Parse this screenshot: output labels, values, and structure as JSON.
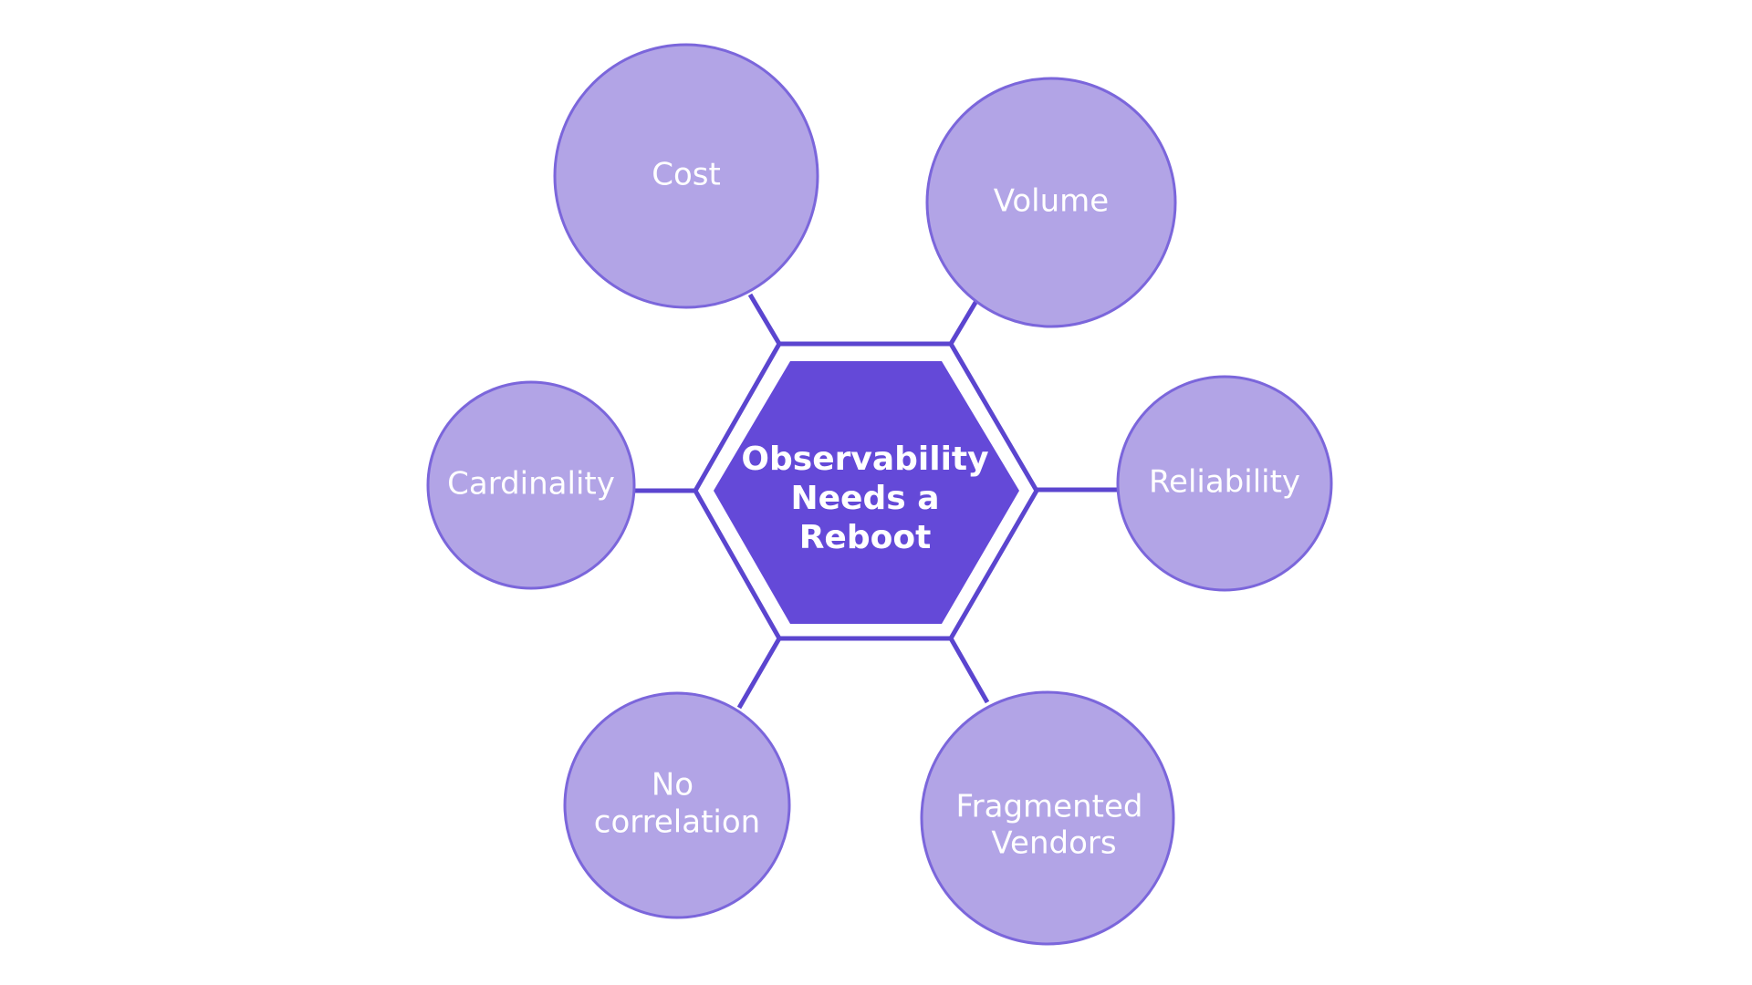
{
  "colors": {
    "accent": "#6449d8",
    "node_fill": "#b2a4e6",
    "node_stroke": "#7b66db",
    "line": "#5b45cf",
    "background": "#ffffff"
  },
  "center": {
    "lines": [
      "Observability",
      "Needs a",
      "Reboot"
    ]
  },
  "nodes": [
    {
      "id": "cost",
      "lines": [
        "Cost"
      ]
    },
    {
      "id": "volume",
      "lines": [
        "Volume"
      ]
    },
    {
      "id": "cardinality",
      "lines": [
        "Cardinality"
      ]
    },
    {
      "id": "reliability",
      "lines": [
        "Reliability"
      ]
    },
    {
      "id": "no-correlation",
      "lines": [
        "No",
        "correlation"
      ]
    },
    {
      "id": "fragmented-vendors",
      "lines": [
        "Fragmented",
        "Vendors"
      ]
    }
  ]
}
